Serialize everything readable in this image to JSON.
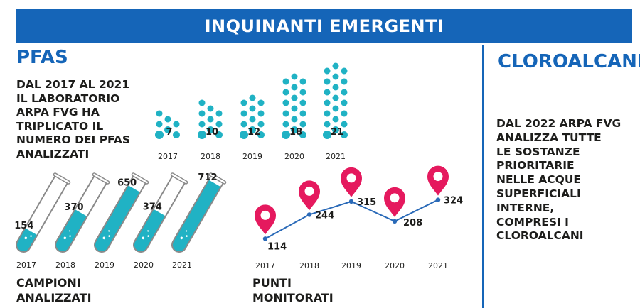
{
  "banner": {
    "title": "INQUINANTI EMERGENTI"
  },
  "pfas": {
    "title": "PFAS",
    "description_lines": [
      "DAL 2017 AL 2021",
      "IL LABORATORIO",
      "ARPA FVG HA",
      "TRIPLICATO IL",
      "NUMERO DEI PFAS",
      "ANALIZZATI"
    ]
  },
  "cloroalcani": {
    "title": "CLOROALCANI",
    "description_lines": [
      "DAL 2022 ARPA FVG",
      "ANALIZZA TUTTE",
      "LE SOSTANZE",
      "PRIORITARIE",
      "NELLE ACQUE",
      "SUPERFICIALI",
      "INTERNE,",
      "COMPRESI I",
      "CLOROALCANI"
    ]
  },
  "campioni": {
    "caption_lines": [
      "CAMPIONI",
      "ANALIZZATI"
    ]
  },
  "punti": {
    "caption_lines": [
      "PUNTI",
      "MONITORATI"
    ]
  },
  "colors": {
    "blue": "#1565b8",
    "teal": "#20b2c4",
    "pink": "#e5195e",
    "line": "#2a6ab8"
  },
  "chart_data": [
    {
      "type": "bar",
      "title": "",
      "categories": [
        "2017",
        "2018",
        "2019",
        "2020",
        "2021"
      ],
      "values": [
        7,
        10,
        12,
        18,
        21
      ],
      "encoding": "dot clusters"
    },
    {
      "type": "bar",
      "title": "CAMPIONI ANALIZZATI",
      "categories": [
        "2017",
        "2018",
        "2019",
        "2020",
        "2021"
      ],
      "values": [
        154,
        370,
        650,
        374,
        712
      ],
      "ylim": [
        0,
        712
      ],
      "encoding": "test tube fill"
    },
    {
      "type": "line",
      "title": "PUNTI MONITORATI",
      "x": [
        "2017",
        "2018",
        "2019",
        "2020",
        "2021"
      ],
      "values": [
        114,
        244,
        315,
        208,
        324
      ],
      "ylim": [
        100,
        330
      ]
    }
  ]
}
